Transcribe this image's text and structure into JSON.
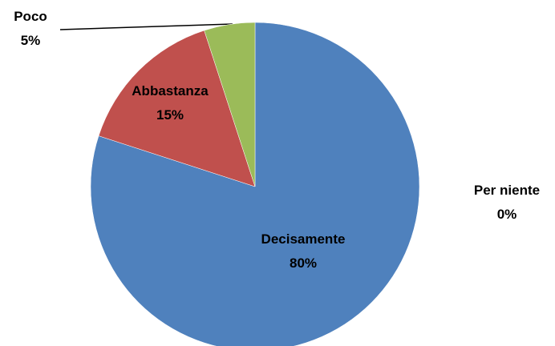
{
  "chart_data": {
    "type": "pie",
    "categories": [
      "Decisamente",
      "Per niente",
      "Abbastanza",
      "Poco"
    ],
    "values": [
      80,
      0,
      15,
      5
    ],
    "value_labels": [
      "80%",
      "0%",
      "15%",
      "5%"
    ],
    "colors": [
      "#4f81bd",
      "#8064a2",
      "#c0504d",
      "#9bbb59"
    ]
  }
}
